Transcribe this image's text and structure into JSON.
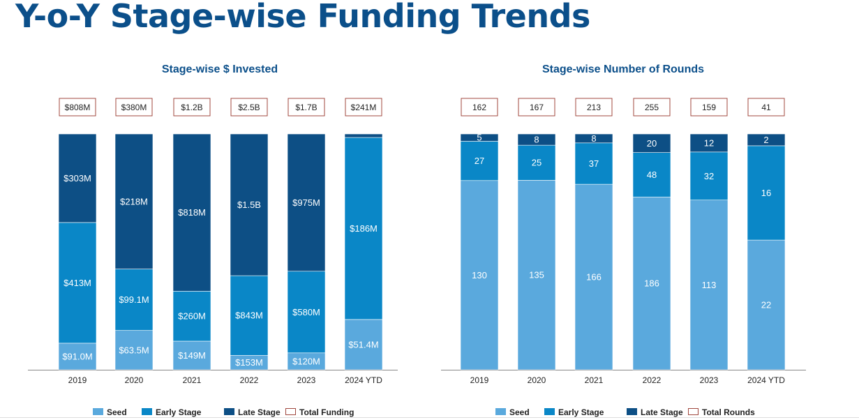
{
  "title": "Y-o-Y Stage-wise Funding Trends",
  "colors": {
    "seed": "#5aa9dd",
    "early": "#0a87c7",
    "late": "#0d4f85",
    "total_border": "#a0473e",
    "title": "#0b4f8a"
  },
  "chart_data": [
    {
      "type": "bar",
      "stacked": "100%",
      "title": "Stage-wise $ Invested",
      "categories": [
        "2019",
        "2020",
        "2021",
        "2022",
        "2023",
        "2024 YTD"
      ],
      "units": "USD millions",
      "series": [
        {
          "name": "Seed",
          "values": [
            91.0,
            63.5,
            149,
            153,
            120,
            51.4
          ],
          "labels": [
            "$91.0M",
            "$63.5M",
            "$149M",
            "$153M",
            "$120M",
            "$51.4M"
          ]
        },
        {
          "name": "Early Stage",
          "values": [
            413,
            99.1,
            260,
            843,
            580,
            186
          ],
          "labels": [
            "$413M",
            "$99.1M",
            "$260M",
            "$843M",
            "$580M",
            "$186M"
          ]
        },
        {
          "name": "Late Stage",
          "values": [
            303,
            218,
            818,
            1500,
            975,
            null
          ],
          "labels": [
            "$303M",
            "$218M",
            "$818M",
            "$1.5B",
            "$975M",
            ""
          ]
        }
      ],
      "totals": {
        "name": "Total Funding",
        "values": [
          808,
          380,
          1200,
          2500,
          1700,
          241
        ],
        "labels": [
          "$808M",
          "$380M",
          "$1.2B",
          "$2.5B",
          "$1.7B",
          "$241M"
        ]
      },
      "legend": [
        "Seed",
        "Early Stage",
        "Late Stage",
        "Total Funding"
      ],
      "legend_position": "bottom",
      "grid": false
    },
    {
      "type": "bar",
      "stacked": "100%",
      "title": "Stage-wise Number of Rounds",
      "categories": [
        "2019",
        "2020",
        "2021",
        "2022",
        "2023",
        "2024 YTD"
      ],
      "series": [
        {
          "name": "Seed",
          "values": [
            130,
            135,
            166,
            186,
            113,
            22
          ],
          "labels": [
            "130",
            "135",
            "166",
            "186",
            "113",
            "22"
          ]
        },
        {
          "name": "Early Stage",
          "values": [
            27,
            25,
            37,
            48,
            32,
            16
          ],
          "labels": [
            "27",
            "25",
            "37",
            "48",
            "32",
            "16"
          ]
        },
        {
          "name": "Late Stage",
          "values": [
            5,
            8,
            8,
            20,
            12,
            2
          ],
          "labels": [
            "5",
            "8",
            "8",
            "20",
            "12",
            "2"
          ]
        }
      ],
      "totals": {
        "name": "Total Rounds",
        "values": [
          162,
          167,
          213,
          255,
          159,
          41
        ],
        "labels": [
          "162",
          "167",
          "213",
          "255",
          "159",
          "41"
        ]
      },
      "legend": [
        "Seed",
        "Early Stage",
        "Late Stage",
        "Total Rounds"
      ],
      "legend_position": "bottom",
      "grid": false
    }
  ]
}
